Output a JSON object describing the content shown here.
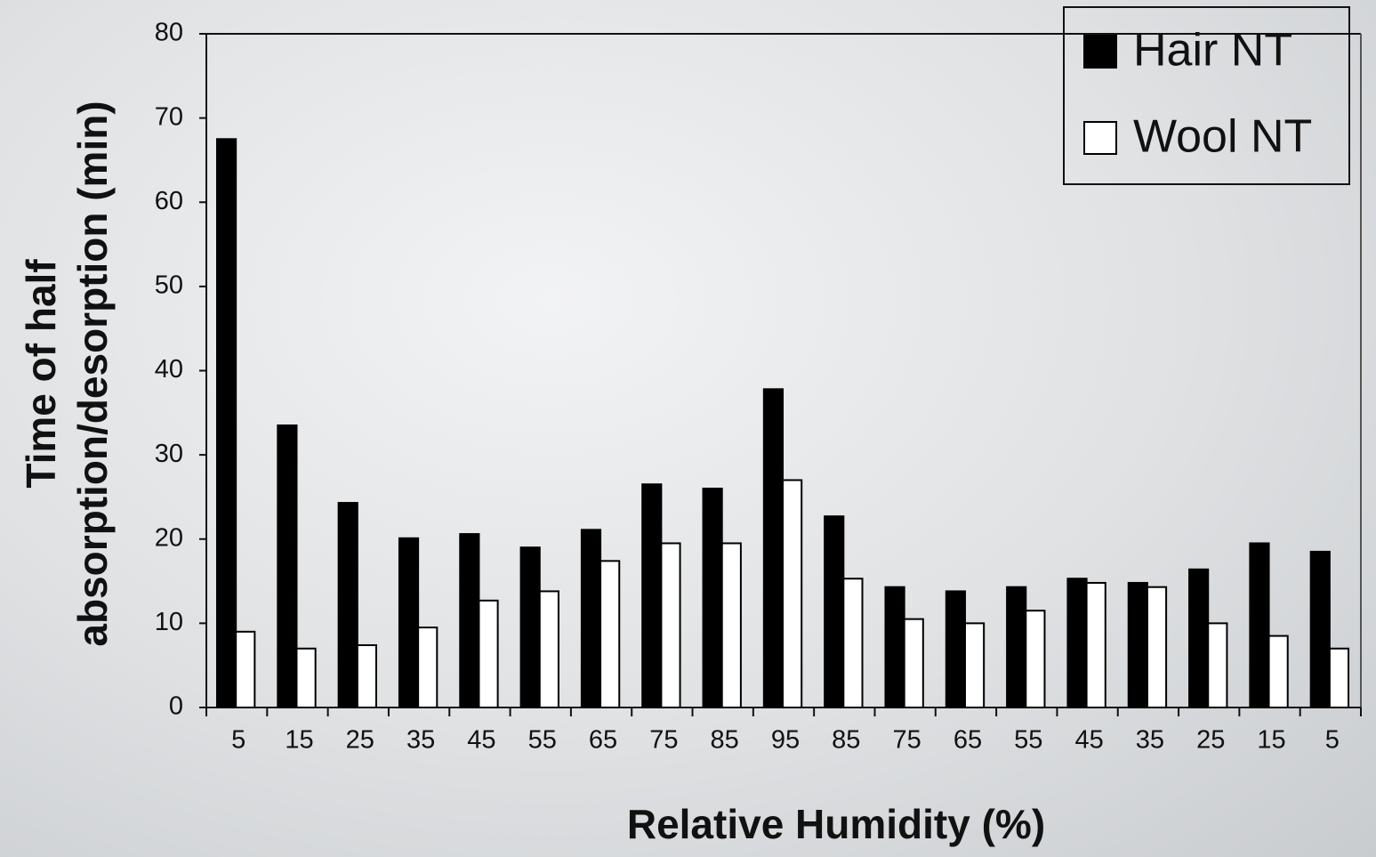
{
  "chart_data": {
    "type": "bar",
    "x_label": "Relative Humidity (%)",
    "y_label": [
      "Time of half",
      "absorption/desorption (min)"
    ],
    "categories": [
      "5",
      "15",
      "25",
      "35",
      "45",
      "55",
      "65",
      "75",
      "85",
      "95",
      "85",
      "75",
      "65",
      "55",
      "45",
      "35",
      "25",
      "15",
      "5"
    ],
    "series": [
      {
        "name": "Hair NT",
        "color": "#000000",
        "values": [
          67.5,
          33.5,
          24.3,
          20.1,
          20.6,
          19,
          21.1,
          26.5,
          26,
          37.8,
          22.7,
          14.3,
          13.8,
          14.3,
          15.3,
          14.8,
          16.4,
          19.5,
          18.5
        ]
      },
      {
        "name": "Wool NT",
        "color": "#ffffff",
        "values": [
          9,
          7,
          7.4,
          9.5,
          12.7,
          13.8,
          17.4,
          19.5,
          19.5,
          27,
          15.3,
          10.5,
          10,
          11.5,
          14.8,
          14.3,
          10,
          8.5,
          7
        ]
      }
    ],
    "ylim": [
      0,
      80
    ],
    "yticks": [
      0,
      10,
      20,
      30,
      40,
      50,
      60,
      70,
      80
    ],
    "legend": "top-right"
  }
}
